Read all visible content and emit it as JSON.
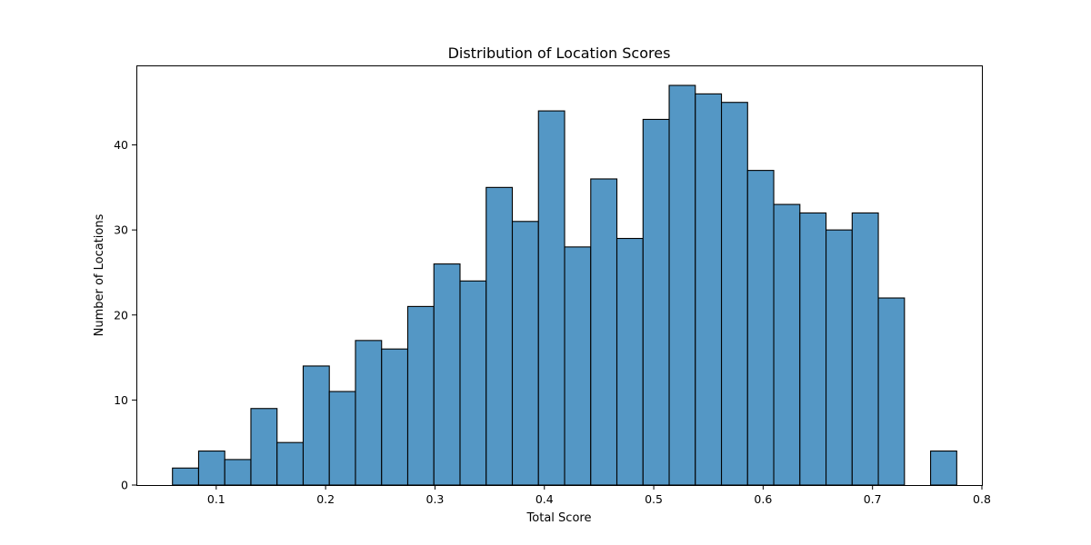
{
  "chart_data": {
    "type": "bar",
    "subtype": "histogram",
    "title": "Distribution of Location Scores",
    "xlabel": "Total Score",
    "ylabel": "Number of Locations",
    "bin_width": 0.0239,
    "x_start": 0.06,
    "values": [
      2,
      4,
      3,
      9,
      5,
      14,
      11,
      17,
      16,
      21,
      26,
      24,
      35,
      31,
      44,
      28,
      36,
      29,
      43,
      47,
      46,
      45,
      37,
      33,
      32,
      30,
      32,
      22,
      0,
      4
    ],
    "xlim": [
      0.027,
      0.8
    ],
    "ylim": [
      0,
      49.35
    ],
    "xticks": [
      0.1,
      0.2,
      0.3,
      0.4,
      0.5,
      0.6,
      0.7,
      0.8
    ],
    "xtick_labels": [
      "0.1",
      "0.2",
      "0.3",
      "0.4",
      "0.5",
      "0.6",
      "0.7",
      "0.8"
    ],
    "yticks": [
      0,
      10,
      20,
      30,
      40
    ],
    "ytick_labels": [
      "0",
      "10",
      "20",
      "30",
      "40"
    ],
    "grid": false,
    "bar_color": "#5497c5",
    "edge_color": "#000000"
  }
}
